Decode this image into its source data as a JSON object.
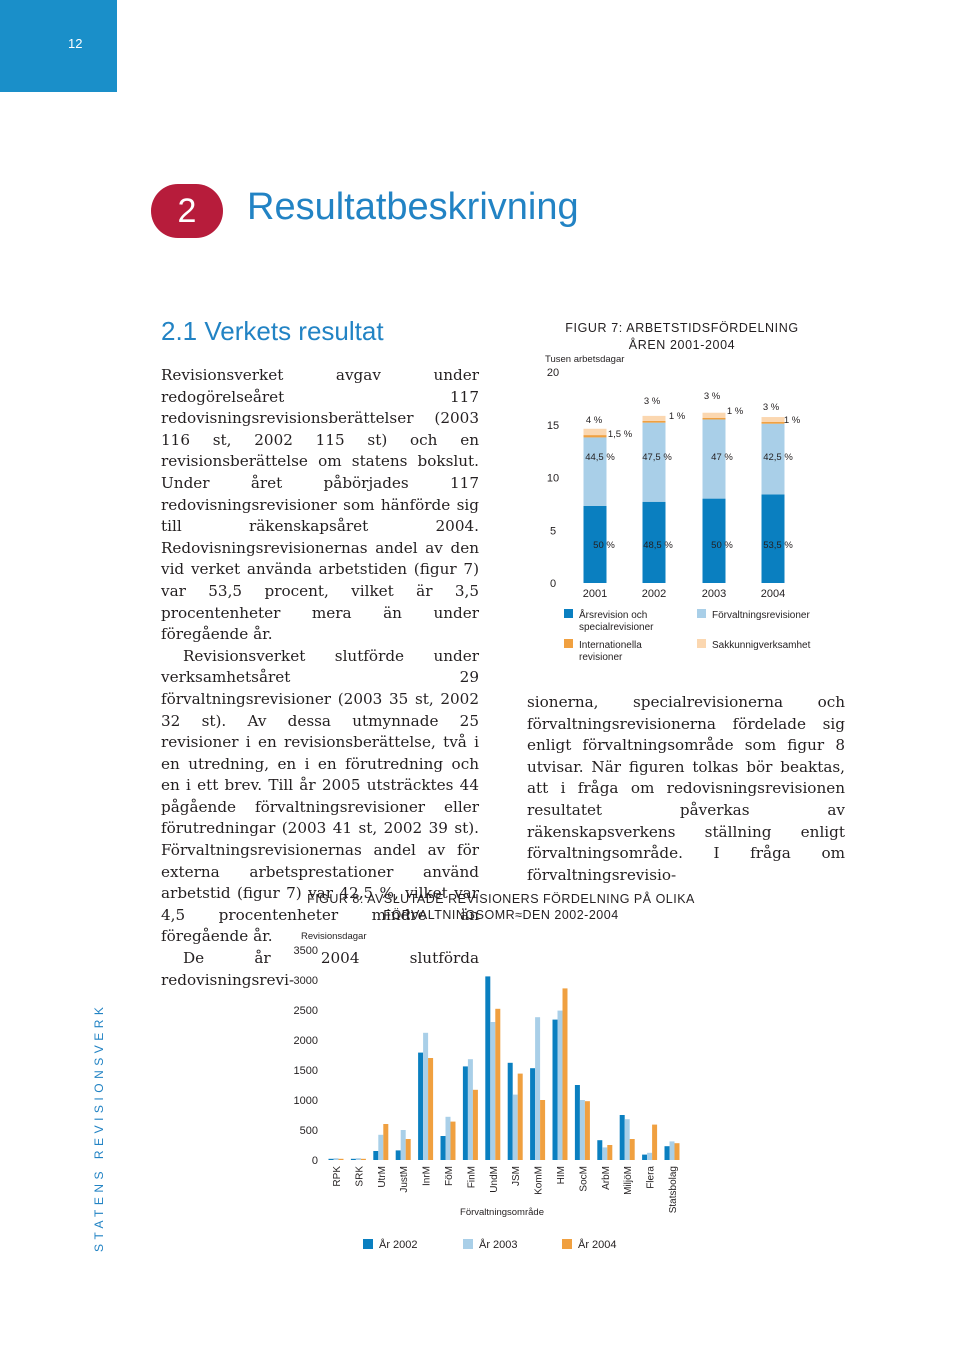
{
  "page_number": "12",
  "sidebar_text": "STATENS REVISIONSVERK",
  "chapter": {
    "number": "2",
    "title": "Resultatbeskrivning"
  },
  "section": {
    "title": "2.1 Verkets resultat"
  },
  "column1": [
    "Revisionsverket avgav under redogörelseåret 117 redovisningsrevisionsberättelser (2003 116 st, 2002 115 st) och en revisionsberättelse om statens bokslut. Under året påbörjades 117 redovisningsrevisioner som hänförde sig till räkenskapsåret 2004. Redovisningsrevisionernas andel av den vid verket använda arbetstiden (figur 7) var 53,5 procent, vilket är 3,5 procentenheter mera än under föregående år.",
    "Revisionsverket slutförde under verksamhetsåret 29 förvaltningsrevisioner (2003 35 st, 2002 32 st). Av dessa utmynnade 25 revisioner i en revisionsberättelse, två i en utredning, en i en förutredning och en i ett brev. Till år 2005 utsträcktes 44 pågående förvaltningsrevisioner eller förutredningar (2003 41 st, 2002 39 st). Förvaltningsrevisionernas andel av för externa arbetsprestationer använd arbetstid (figur 7) var 42,5 %, vilket var 4,5 procentenheter mindre än föregående år.",
    "De år 2004 slutförda redovisningsrevi-"
  ],
  "column2": [
    "sionerna, specialrevisionerna och förvaltningsrevisionerna fördelade sig enligt förvaltningsområde som figur 8 utvisar. När figuren tolkas bör beaktas, att i fråga om redovisningsrevisionen resultatet påverkas av räkenskapsverkens ställning enligt förvaltningsområde. I fråga om förvaltningsrevisio-"
  ],
  "colors": {
    "blue": "#0a7fc0",
    "lightblue": "#a9cfe8",
    "orange": "#f0a040",
    "peach": "#fbd7b0",
    "heading": "#2283c4",
    "red": "#b71c3b"
  },
  "chart_data": [
    {
      "type": "bar",
      "title_line1": "FIGUR 7: ARBETSTIDSFÖRDELNING",
      "title_line2": "ÅREN 2001-2004",
      "ylabel": "Tusen arbetsdagar",
      "ylim": [
        0,
        20
      ],
      "yticks": [
        0,
        5,
        10,
        15,
        20
      ],
      "categories": [
        "2001",
        "2002",
        "2003",
        "2004"
      ],
      "stacked": true,
      "series": [
        {
          "name": "Årsrevision och specialrevisioner",
          "legend_line2": "specialrevisioner",
          "legend_line1": "Årsrevision och",
          "color": "#0a7fc0",
          "values": [
            7.3,
            7.7,
            8.0,
            8.4
          ],
          "labels": [
            "50 %",
            "48,5 %",
            "50 %",
            "53,5 %"
          ]
        },
        {
          "name": "Förvaltningsrevisioner",
          "legend_line1": "Förvaltningsrevisioner",
          "color": "#a9cfe8",
          "values": [
            6.5,
            7.5,
            7.5,
            6.7
          ],
          "labels": [
            "44,5 %",
            "47,5 %",
            "47 %",
            "42,5 %"
          ]
        },
        {
          "name": "Internationella revisioner",
          "legend_line1": "Internationella",
          "legend_line2": "revisioner",
          "color": "#f0a040",
          "values": [
            0.22,
            0.16,
            0.16,
            0.16
          ],
          "labels": [
            "1,5 %",
            "1 %",
            "1 %",
            "1 %"
          ]
        },
        {
          "name": "Sakkunnigverksamhet",
          "legend_line1": "Sakkunnigverksamhet",
          "color": "#fbd7b0",
          "values": [
            0.6,
            0.48,
            0.48,
            0.47
          ],
          "labels": [
            "4 %",
            "3 %",
            "3 %",
            "3 %"
          ]
        }
      ]
    },
    {
      "type": "bar",
      "title_line1": "FIGUR 8: AVSLUTADE REVISIONERS FÖRDELNING PÅ OLIKA",
      "title_line2": "FÖRVALTNINGSOMR≈DEN 2002-2004",
      "ylabel": "Revisionsdagar",
      "xlabel": "Förvaltningsområde",
      "ylim": [
        0,
        3500
      ],
      "yticks": [
        0,
        500,
        1000,
        1500,
        2000,
        2500,
        3000,
        3500
      ],
      "categories": [
        "RPK",
        "SRK",
        "UtrM",
        "JustM",
        "InrM",
        "FöM",
        "FinM",
        "UndM",
        "JSM",
        "KomM",
        "HIM",
        "SocM",
        "ArbM",
        "MiljöM",
        "Flera",
        "Statsbolag"
      ],
      "series": [
        {
          "name": "År 2002",
          "color": "#0a7fc0",
          "values": [
            20,
            20,
            150,
            160,
            1790,
            400,
            1560,
            3060,
            1620,
            1530,
            2340,
            1250,
            330,
            750,
            90,
            230
          ]
        },
        {
          "name": "År 2003",
          "color": "#a9cfe8",
          "values": [
            30,
            30,
            420,
            500,
            2120,
            720,
            1680,
            2300,
            1090,
            2380,
            2490,
            1000,
            210,
            680,
            120,
            310
          ]
        },
        {
          "name": "År 2004",
          "color": "#f0a040",
          "values": [
            20,
            20,
            600,
            350,
            1700,
            640,
            1170,
            2520,
            1440,
            1000,
            2860,
            980,
            250,
            350,
            590,
            280
          ]
        }
      ]
    }
  ]
}
